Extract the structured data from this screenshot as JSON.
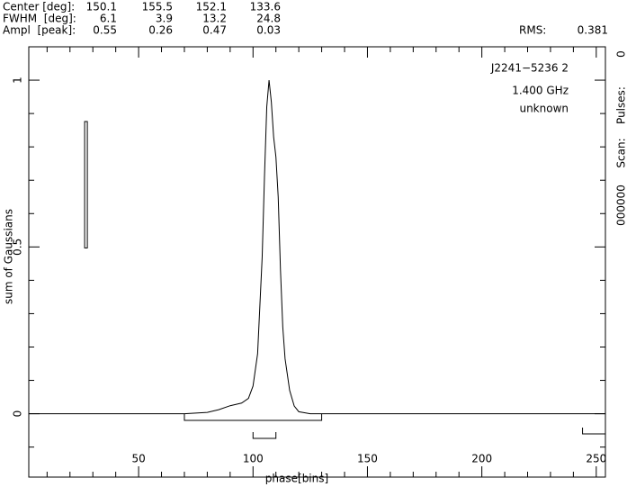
{
  "chart_data": {
    "type": "line",
    "params": {
      "rows": [
        {
          "label": "Center [deg]:",
          "values": [
            150.1,
            155.5,
            152.1,
            133.6
          ]
        },
        {
          "label": "FWHM  [deg]:",
          "values": [
            6.1,
            3.9,
            13.2,
            24.8
          ]
        },
        {
          "label": "Ampl  [peak]:",
          "values": [
            0.55,
            0.26,
            0.47,
            0.03
          ]
        }
      ],
      "rms_label": "RMS:",
      "rms": 0.381
    },
    "source": [
      "J2241−5236 2",
      "1.400 GHz",
      "unknown"
    ],
    "side": {
      "pulses_label": "Pulses:",
      "pulses": 0,
      "scan_label": "Scan:",
      "scan": "000000"
    },
    "x_label": "phase[bins]",
    "y_label": "sum of Gaussians",
    "x": [
      2,
      70,
      80,
      85,
      90,
      95,
      98,
      100,
      102,
      104,
      105,
      106,
      107,
      108,
      109,
      110,
      111,
      112,
      113,
      114,
      116,
      118,
      120,
      125,
      254
    ],
    "values": [
      0,
      0,
      0.004,
      0.012,
      0.024,
      0.032,
      0.046,
      0.083,
      0.18,
      0.47,
      0.71,
      0.92,
      1.0,
      0.935,
      0.83,
      0.77,
      0.65,
      0.43,
      0.26,
      0.165,
      0.07,
      0.023,
      0.006,
      0,
      0
    ],
    "color": "#000000",
    "xlim": [
      2,
      254
    ],
    "ylim": [
      -0.19,
      1.1
    ],
    "xticks": [
      50,
      100,
      150,
      200,
      250
    ],
    "yticks": [
      0,
      0.5,
      1
    ],
    "xminorticks": [
      10,
      20,
      30,
      40,
      60,
      70,
      80,
      90,
      110,
      120,
      130,
      140,
      160,
      170,
      180,
      190,
      210,
      220,
      230,
      240
    ],
    "yminorticks": [
      -0.1,
      0.1,
      0.2,
      0.3,
      0.4,
      0.6,
      0.7,
      0.8,
      0.9,
      1.1
    ],
    "error_box": {
      "x": 27,
      "ylow": 0.497,
      "yhigh": 0.876
    },
    "brackets": [
      [
        70,
        130
      ],
      [
        100,
        110
      ],
      [
        244,
        254
      ]
    ]
  }
}
